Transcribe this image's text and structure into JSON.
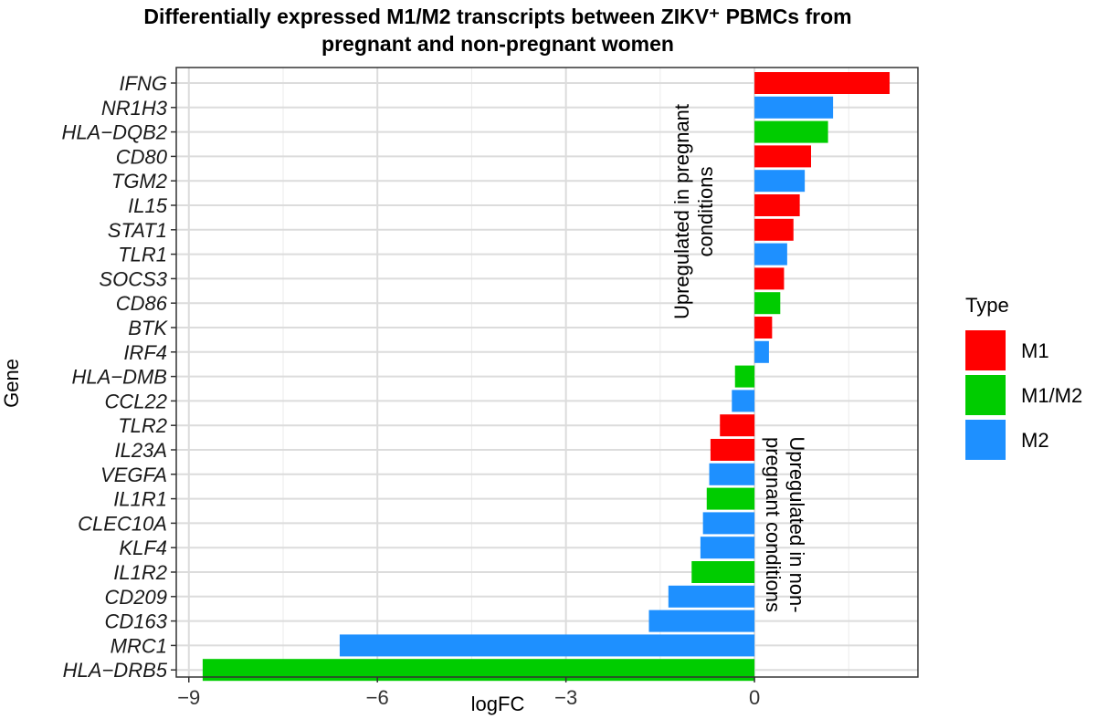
{
  "title_line1": "Differentially expressed M1/M2 transcripts between ZIKV⁺ PBMCs from",
  "title_line2": "pregnant and non-pregnant women",
  "chart_data": {
    "type": "bar",
    "orientation": "horizontal",
    "xlabel": "logFC",
    "ylabel": "Gene",
    "xlim": [
      -9.2,
      2.6
    ],
    "xticks": [
      -9,
      -6,
      -3,
      0
    ],
    "xtick_labels": [
      "−9",
      "−6",
      "−3",
      "0"
    ],
    "grid": true,
    "legend_placement": "right",
    "legend_title": "Type",
    "legend": [
      {
        "name": "M1",
        "color": "#ff0000"
      },
      {
        "name": "M1/M2",
        "color": "#00cc00"
      },
      {
        "name": "M2",
        "color": "#1e90ff"
      }
    ],
    "categories": [
      "IFNG",
      "NR1H3",
      "HLA−DQB2",
      "CD80",
      "TGM2",
      "IL15",
      "STAT1",
      "TLR1",
      "SOCS3",
      "CD86",
      "BTK",
      "IRF4",
      "HLA−DMB",
      "CCL22",
      "TLR2",
      "IL23A",
      "VEGFA",
      "IL1R1",
      "CLEC10A",
      "KLF4",
      "IL1R2",
      "CD209",
      "CD163",
      "MRC1",
      "HLA−DRB5"
    ],
    "values": [
      2.15,
      1.25,
      1.17,
      0.9,
      0.8,
      0.72,
      0.62,
      0.52,
      0.47,
      0.41,
      0.28,
      0.23,
      -0.31,
      -0.36,
      -0.55,
      -0.7,
      -0.72,
      -0.76,
      -0.82,
      -0.86,
      -1.0,
      -1.37,
      -1.68,
      -6.6,
      -8.78
    ],
    "types": [
      "M1",
      "M2",
      "M1/M2",
      "M1",
      "M2",
      "M1",
      "M1",
      "M2",
      "M1",
      "M1/M2",
      "M1",
      "M2",
      "M1/M2",
      "M2",
      "M1",
      "M1",
      "M2",
      "M1/M2",
      "M2",
      "M2",
      "M1/M2",
      "M2",
      "M2",
      "M2",
      "M1/M2"
    ],
    "annotations": [
      {
        "text_line1": "Upregulated in pregnant",
        "text_line2": "conditions"
      },
      {
        "text_line1": "Upregulated in non-",
        "text_line2": "pregnant conditions"
      }
    ]
  }
}
